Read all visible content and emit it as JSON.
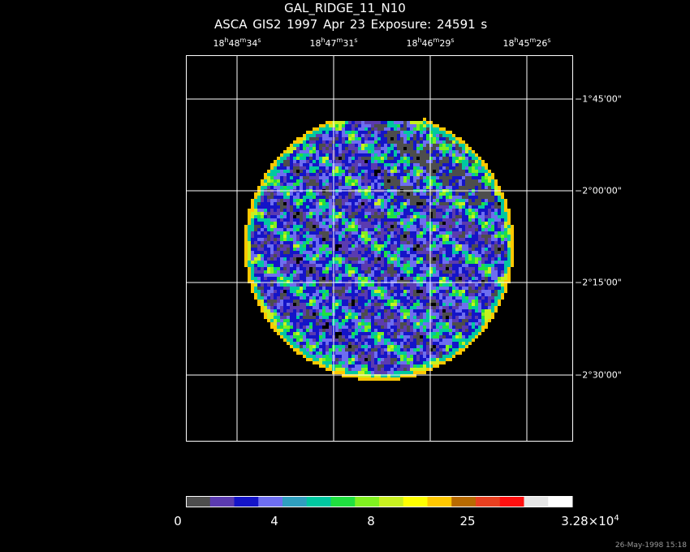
{
  "title": "GAL_RIDGE_11_N10",
  "subtitle": "ASCA GIS2   1997 Apr 23    Exposure: 24591 s",
  "ra_ticks": [
    {
      "h": "18",
      "m": "48",
      "s": "34"
    },
    {
      "h": "18",
      "m": "47",
      "s": "31"
    },
    {
      "h": "18",
      "m": "46",
      "s": "29"
    },
    {
      "h": "18",
      "m": "45",
      "s": "26"
    }
  ],
  "dec_ticks": [
    "−1°45'00\"",
    "−2°00'00\"",
    "−2°15'00\"",
    "−2°30'00\""
  ],
  "colorbar": {
    "colors": [
      "#4d4d4d",
      "#5b3bb0",
      "#1414c8",
      "#6e6ef0",
      "#2f9fbf",
      "#00c8a0",
      "#20e040",
      "#80f020",
      "#c8f020",
      "#ffff00",
      "#ffc800",
      "#b86a00",
      "#e84020",
      "#ff1010",
      "#e6e6e6",
      "#ffffff"
    ],
    "labels": [
      {
        "text": "0",
        "slot": 0
      },
      {
        "text": "4",
        "slot": 4
      },
      {
        "text": "8",
        "slot": 8
      },
      {
        "text": "25",
        "slot": 12
      },
      {
        "text": "3.28×10",
        "sup": "4",
        "slot": 16
      }
    ]
  },
  "image_palette": [
    "#4d4d4d",
    "#5b3bb0",
    "#1414c8",
    "#6e6ef0",
    "#2f9fbf",
    "#00c8a0",
    "#20e040",
    "#80f020",
    "#c8f020",
    "#ffff00",
    "#ffc800",
    "#e84020",
    "#ffffff"
  ],
  "timestamp": "26-May-1998 15:18"
}
